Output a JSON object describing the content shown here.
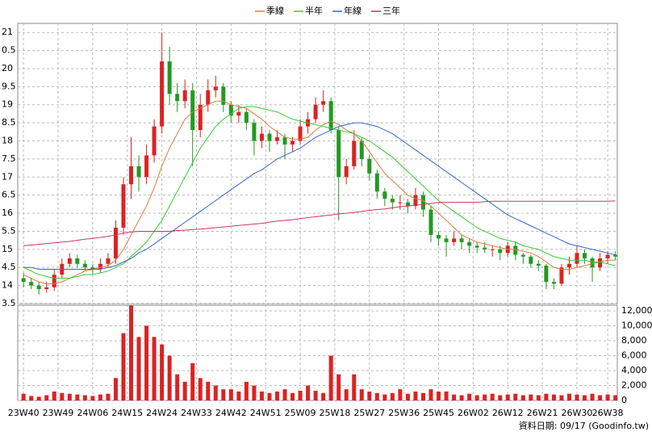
{
  "chart_data": {
    "type": "candlestick",
    "footer": "資料日期: 09/17  (Goodinfo.tw)",
    "up_color": "#dd2222",
    "down_color": "#229922",
    "grid": true,
    "xlim": [
      -1.5,
      154.5
    ],
    "xticks": [
      {
        "value": 0,
        "label": "23W40"
      },
      {
        "value": 9,
        "label": "23W49"
      },
      {
        "value": 18,
        "label": "24W06"
      },
      {
        "value": 27,
        "label": "24W15"
      },
      {
        "value": 36,
        "label": "24W24"
      },
      {
        "value": 45,
        "label": "24W33"
      },
      {
        "value": 54,
        "label": "24W42"
      },
      {
        "value": 63,
        "label": "24W51"
      },
      {
        "value": 72,
        "label": "25W09"
      },
      {
        "value": 81,
        "label": "25W18"
      },
      {
        "value": 90,
        "label": "25W27"
      },
      {
        "value": 99,
        "label": "25W36"
      },
      {
        "value": 108,
        "label": "25W45"
      },
      {
        "value": 117,
        "label": "26W02"
      },
      {
        "value": 126,
        "label": "26W12"
      },
      {
        "value": 135,
        "label": "26W21"
      },
      {
        "value": 144,
        "label": "26W30"
      },
      {
        "value": 152,
        "label": "26W38"
      }
    ],
    "ylim": [
      13.5,
      21.25
    ],
    "yticks": [
      {
        "value": 13.5,
        "label": "3.5"
      },
      14,
      {
        "value": 14.5,
        "label": "4.5"
      },
      15,
      {
        "value": 15.5,
        "label": "5.5"
      },
      16,
      {
        "value": 16.5,
        "label": "6.5"
      },
      17,
      {
        "value": 17.5,
        "label": "7.5"
      },
      18,
      {
        "value": 18.5,
        "label": "8.5"
      },
      19,
      {
        "value": 19.5,
        "label": "9.5"
      },
      20,
      {
        "value": 20.5,
        "label": "0.5"
      },
      21
    ],
    "x": [
      0,
      2,
      4,
      6,
      8,
      10,
      12,
      14,
      16,
      18,
      20,
      22,
      24,
      26,
      28,
      30,
      32,
      34,
      36,
      38,
      40,
      42,
      44,
      46,
      48,
      50,
      52,
      54,
      56,
      58,
      60,
      62,
      64,
      66,
      68,
      70,
      72,
      74,
      76,
      78,
      80,
      82,
      84,
      86,
      88,
      90,
      92,
      94,
      96,
      98,
      100,
      102,
      104,
      106,
      108,
      110,
      112,
      114,
      116,
      118,
      120,
      122,
      124,
      126,
      128,
      130,
      132,
      134,
      136,
      138,
      140,
      142,
      144,
      146,
      148,
      150,
      152,
      154
    ],
    "ohlc": [
      [
        14.2,
        14.35,
        13.95,
        14.1
      ],
      [
        14.1,
        14.2,
        13.9,
        14.0
      ],
      [
        14.0,
        14.1,
        13.75,
        13.9
      ],
      [
        13.9,
        14.1,
        13.8,
        13.95
      ],
      [
        13.95,
        14.45,
        13.85,
        14.3
      ],
      [
        14.3,
        14.75,
        14.2,
        14.6
      ],
      [
        14.6,
        14.9,
        14.5,
        14.75
      ],
      [
        14.75,
        14.85,
        14.5,
        14.6
      ],
      [
        14.6,
        14.7,
        14.4,
        14.5
      ],
      [
        14.5,
        14.6,
        14.3,
        14.45
      ],
      [
        14.45,
        14.75,
        14.35,
        14.6
      ],
      [
        14.6,
        14.9,
        14.5,
        14.75
      ],
      [
        14.75,
        15.8,
        14.6,
        15.6
      ],
      [
        15.6,
        17.0,
        15.4,
        16.8
      ],
      [
        16.8,
        18.1,
        16.4,
        17.3
      ],
      [
        17.3,
        17.6,
        16.6,
        17.0
      ],
      [
        17.0,
        17.9,
        16.8,
        17.6
      ],
      [
        17.6,
        18.6,
        17.4,
        18.4
      ],
      [
        18.4,
        21.0,
        18.2,
        20.2
      ],
      [
        20.2,
        20.6,
        19.0,
        19.3
      ],
      [
        19.3,
        19.6,
        18.8,
        19.1
      ],
      [
        19.1,
        19.7,
        18.9,
        19.4
      ],
      [
        19.4,
        19.6,
        17.3,
        18.3
      ],
      [
        18.3,
        19.3,
        18.1,
        19.0
      ],
      [
        19.0,
        19.7,
        18.8,
        19.4
      ],
      [
        19.4,
        19.8,
        19.2,
        19.5
      ],
      [
        19.5,
        19.6,
        18.8,
        19.0
      ],
      [
        19.0,
        19.1,
        18.5,
        18.7
      ],
      [
        18.7,
        19.0,
        18.5,
        18.8
      ],
      [
        18.8,
        18.9,
        18.3,
        18.5
      ],
      [
        18.5,
        18.6,
        17.6,
        18.0
      ],
      [
        18.0,
        18.4,
        17.8,
        18.2
      ],
      [
        18.2,
        18.3,
        17.7,
        18.0
      ],
      [
        18.0,
        18.3,
        17.9,
        18.1
      ],
      [
        18.1,
        18.2,
        17.5,
        17.9
      ],
      [
        17.9,
        18.1,
        17.7,
        18.0
      ],
      [
        18.0,
        18.6,
        17.9,
        18.4
      ],
      [
        18.4,
        18.8,
        18.2,
        18.6
      ],
      [
        18.6,
        19.2,
        18.5,
        19.0
      ],
      [
        19.0,
        19.4,
        18.8,
        19.1
      ],
      [
        19.1,
        19.2,
        18.2,
        18.3
      ],
      [
        18.3,
        18.4,
        15.8,
        17.0
      ],
      [
        17.0,
        17.5,
        16.8,
        17.3
      ],
      [
        17.3,
        18.3,
        17.2,
        18.0
      ],
      [
        18.0,
        18.1,
        17.3,
        17.5
      ],
      [
        17.5,
        17.6,
        16.9,
        17.1
      ],
      [
        17.1,
        17.2,
        16.4,
        16.6
      ],
      [
        16.6,
        16.7,
        16.2,
        16.4
      ],
      [
        16.4,
        16.5,
        16.1,
        16.3
      ],
      [
        16.3,
        16.5,
        16.1,
        16.3
      ],
      [
        16.3,
        16.4,
        16.0,
        16.2
      ],
      [
        16.2,
        16.7,
        16.1,
        16.5
      ],
      [
        16.5,
        16.6,
        15.9,
        16.1
      ],
      [
        16.1,
        16.2,
        15.2,
        15.4
      ],
      [
        15.4,
        15.5,
        15.1,
        15.3
      ],
      [
        15.3,
        15.4,
        14.8,
        15.2
      ],
      [
        15.2,
        15.5,
        15.1,
        15.3
      ],
      [
        15.3,
        15.4,
        15.0,
        15.2
      ],
      [
        15.2,
        15.3,
        14.9,
        15.1
      ],
      [
        15.1,
        15.2,
        14.9,
        15.05
      ],
      [
        15.05,
        15.2,
        14.9,
        15.0
      ],
      [
        15.0,
        15.1,
        14.8,
        15.0
      ],
      [
        15.0,
        15.1,
        14.7,
        14.9
      ],
      [
        14.9,
        15.2,
        14.8,
        15.1
      ],
      [
        15.1,
        15.2,
        14.7,
        14.85
      ],
      [
        14.85,
        14.9,
        14.6,
        14.8
      ],
      [
        14.8,
        14.85,
        14.5,
        14.6
      ],
      [
        14.6,
        14.7,
        14.4,
        14.55
      ],
      [
        14.55,
        14.6,
        13.9,
        14.1
      ],
      [
        14.1,
        14.2,
        13.9,
        14.05
      ],
      [
        14.05,
        14.6,
        14.0,
        14.5
      ],
      [
        14.5,
        14.8,
        14.3,
        14.6
      ],
      [
        14.6,
        15.1,
        14.5,
        14.9
      ],
      [
        14.9,
        15.0,
        14.6,
        14.75
      ],
      [
        14.75,
        14.8,
        14.1,
        14.5
      ],
      [
        14.5,
        14.9,
        14.4,
        14.75
      ],
      [
        14.75,
        14.95,
        14.6,
        14.85
      ],
      [
        14.85,
        14.95,
        14.7,
        14.8
      ]
    ],
    "series": [
      {
        "name": "季線",
        "color": "#e07b39",
        "values": [
          14.3,
          14.2,
          14.1,
          14.05,
          14.05,
          14.1,
          14.2,
          14.3,
          14.4,
          14.45,
          14.5,
          14.55,
          14.7,
          15.0,
          15.4,
          15.8,
          16.2,
          16.7,
          17.3,
          17.8,
          18.2,
          18.6,
          18.8,
          18.9,
          19.0,
          19.1,
          19.1,
          19.0,
          18.95,
          18.9,
          18.75,
          18.6,
          18.4,
          18.25,
          18.1,
          18.05,
          18.05,
          18.1,
          18.3,
          18.45,
          18.55,
          18.45,
          18.3,
          18.2,
          18.0,
          17.7,
          17.4,
          17.1,
          16.9,
          16.7,
          16.5,
          16.4,
          16.35,
          16.2,
          16.0,
          15.8,
          15.6,
          15.4,
          15.3,
          15.2,
          15.15,
          15.1,
          15.05,
          15.0,
          15.0,
          14.95,
          14.9,
          14.8,
          14.65,
          14.5,
          14.45,
          14.45,
          14.5,
          14.55,
          14.6,
          14.65,
          14.7,
          14.7
        ]
      },
      {
        "name": "半年",
        "color": "#33cc33",
        "values": [
          14.5,
          14.4,
          14.3,
          14.25,
          14.2,
          14.2,
          14.2,
          14.25,
          14.3,
          14.3,
          14.35,
          14.4,
          14.5,
          14.6,
          14.8,
          15.0,
          15.2,
          15.5,
          15.8,
          16.2,
          16.6,
          17.0,
          17.4,
          17.8,
          18.1,
          18.4,
          18.6,
          18.75,
          18.9,
          18.95,
          18.95,
          18.9,
          18.85,
          18.8,
          18.7,
          18.6,
          18.55,
          18.5,
          18.45,
          18.4,
          18.35,
          18.3,
          18.25,
          18.2,
          18.1,
          18.0,
          17.85,
          17.7,
          17.55,
          17.35,
          17.15,
          16.95,
          16.75,
          16.55,
          16.35,
          16.2,
          16.05,
          15.9,
          15.75,
          15.6,
          15.5,
          15.4,
          15.3,
          15.25,
          15.2,
          15.1,
          15.05,
          15.0,
          14.9,
          14.8,
          14.75,
          14.7,
          14.7,
          14.7,
          14.65,
          14.65,
          14.6,
          14.55
        ]
      },
      {
        "name": "年線",
        "color": "#3366cc",
        "values": [
          14.5,
          14.5,
          14.45,
          14.45,
          14.45,
          14.45,
          14.45,
          14.45,
          14.45,
          14.45,
          14.45,
          14.5,
          14.55,
          14.65,
          14.75,
          14.9,
          15.0,
          15.15,
          15.3,
          15.45,
          15.6,
          15.75,
          15.9,
          16.05,
          16.2,
          16.35,
          16.5,
          16.65,
          16.8,
          16.95,
          17.1,
          17.2,
          17.35,
          17.5,
          17.6,
          17.7,
          17.8,
          17.95,
          18.1,
          18.2,
          18.3,
          18.4,
          18.45,
          18.5,
          18.5,
          18.45,
          18.4,
          18.3,
          18.2,
          18.05,
          17.9,
          17.75,
          17.6,
          17.45,
          17.3,
          17.15,
          17.0,
          16.85,
          16.7,
          16.55,
          16.4,
          16.25,
          16.1,
          15.95,
          15.85,
          15.75,
          15.65,
          15.55,
          15.45,
          15.35,
          15.25,
          15.15,
          15.1,
          15.05,
          15.0,
          14.95,
          14.9,
          14.85
        ]
      },
      {
        "name": "三年",
        "color": "#cc3366",
        "values": [
          15.1,
          15.12,
          15.14,
          15.16,
          15.18,
          15.2,
          15.22,
          15.25,
          15.28,
          15.3,
          15.33,
          15.36,
          15.4,
          15.45,
          15.48,
          15.5,
          15.5,
          15.5,
          15.5,
          15.5,
          15.52,
          15.53,
          15.55,
          15.56,
          15.58,
          15.6,
          15.62,
          15.64,
          15.66,
          15.68,
          15.7,
          15.72,
          15.75,
          15.78,
          15.8,
          15.82,
          15.85,
          15.88,
          15.9,
          15.93,
          15.95,
          15.98,
          16.0,
          16.02,
          16.05,
          16.08,
          16.1,
          16.12,
          16.15,
          16.18,
          16.2,
          16.22,
          16.25,
          16.27,
          16.3,
          16.3,
          16.3,
          16.3,
          16.3,
          16.3,
          16.32,
          16.33,
          16.33,
          16.33,
          16.33,
          16.33,
          16.33,
          16.33,
          16.33,
          16.33,
          16.33,
          16.33,
          16.33,
          16.33,
          16.33,
          16.33,
          16.33,
          16.34
        ]
      }
    ],
    "volume": {
      "color": "#dd2222",
      "ylim": [
        0,
        12750
      ],
      "yticks": [
        0,
        {
          "value": 2000,
          "label": "2,000"
        },
        {
          "value": 4000,
          "label": "4,000"
        },
        {
          "value": 6000,
          "label": "6,000"
        },
        {
          "value": 8000,
          "label": "8,000"
        },
        {
          "value": 10000,
          "label": "10,000"
        },
        {
          "value": 12000,
          "label": "12,000"
        }
      ],
      "values": [
        900,
        600,
        500,
        700,
        1200,
        1000,
        900,
        800,
        700,
        600,
        800,
        900,
        3000,
        9000,
        12700,
        8500,
        10000,
        8500,
        7500,
        6000,
        3500,
        2500,
        5000,
        3000,
        2500,
        2000,
        1500,
        1500,
        1200,
        2500,
        2000,
        1200,
        1000,
        1200,
        1500,
        1000,
        1300,
        2000,
        1300,
        1000,
        6000,
        3500,
        1500,
        3500,
        1500,
        1200,
        1000,
        800,
        1000,
        1500,
        900,
        1200,
        1000,
        1500,
        1200,
        1200,
        800,
        700,
        900,
        700,
        800,
        900,
        700,
        800,
        900,
        700,
        800,
        700,
        900,
        800,
        700,
        900,
        800,
        700,
        900,
        700,
        800,
        700
      ]
    }
  }
}
